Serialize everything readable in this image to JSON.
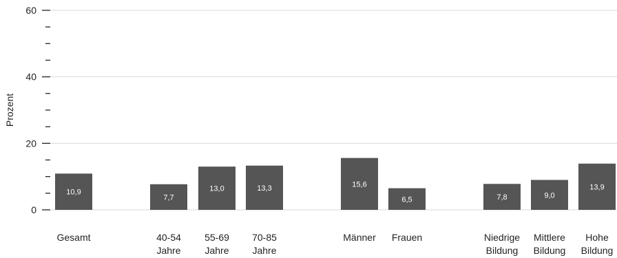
{
  "chart_data": {
    "type": "bar",
    "ylabel": "Prozent",
    "ylim": [
      0,
      60
    ],
    "yticks": [
      "0",
      "20",
      "40",
      "60"
    ],
    "grid": true,
    "bar_color": "#555555",
    "label_color": "#ffffff",
    "categories": [
      [
        "Gesamt"
      ],
      [
        "40-54",
        "Jahre"
      ],
      [
        "55-69",
        "Jahre"
      ],
      [
        "70-85",
        "Jahre"
      ],
      [
        "Männer"
      ],
      [
        "Frauen"
      ],
      [
        "Niedrige",
        "Bildung"
      ],
      [
        "Mittlere",
        "Bildung"
      ],
      [
        "Hohe",
        "Bildung"
      ]
    ],
    "values": [
      10.9,
      7.7,
      13.0,
      13.3,
      15.6,
      6.5,
      7.8,
      9.0,
      13.9
    ],
    "value_labels": [
      "10,9",
      "7,7",
      "13,0",
      "13,3",
      "15,6",
      "6,5",
      "7,8",
      "9,0",
      "13,9"
    ]
  }
}
